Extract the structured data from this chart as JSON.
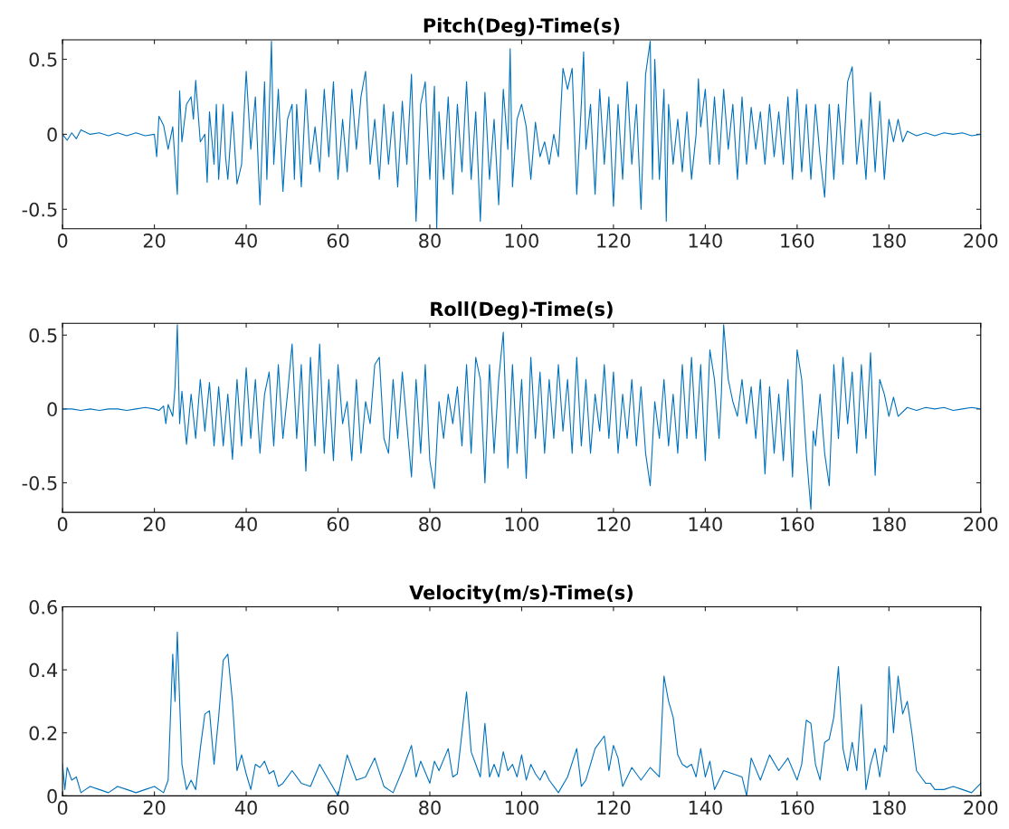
{
  "chart_data": [
    {
      "type": "line",
      "title": "Pitch(Deg)-Time(s)",
      "xlim": [
        0,
        200
      ],
      "xticks": [
        0,
        20,
        40,
        60,
        80,
        100,
        120,
        140,
        160,
        180,
        200
      ],
      "ylim": [
        -0.63,
        0.63
      ],
      "yticks": [
        -0.5,
        0,
        0.5
      ],
      "grid": false,
      "legend": false,
      "series": [
        {
          "color": "#0072bd",
          "x": [
            0,
            1,
            2,
            3,
            4,
            6,
            8,
            10,
            12,
            14,
            16,
            18,
            20,
            20.5,
            21,
            22,
            23,
            24,
            25,
            25.5,
            26,
            27,
            28,
            28.5,
            29,
            30,
            31,
            31.5,
            32,
            33,
            33.5,
            34,
            35,
            35.5,
            36,
            37,
            38,
            39,
            40,
            41,
            42,
            43,
            44,
            44.5,
            45,
            45.5,
            46,
            47,
            48,
            49,
            50,
            50.5,
            51,
            52,
            53,
            54,
            55,
            56,
            57,
            58,
            59,
            60,
            61,
            62,
            63,
            64,
            65,
            66,
            67,
            68,
            69,
            70,
            71,
            72,
            73,
            74,
            75,
            76,
            77,
            78,
            79,
            80,
            81,
            81.5,
            82,
            83,
            84,
            85,
            86,
            87,
            88,
            89,
            90,
            91,
            92,
            93,
            94,
            95,
            96,
            97,
            97.5,
            98,
            99,
            100,
            101,
            102,
            103,
            104,
            105,
            106,
            107,
            108,
            109,
            110,
            111,
            112,
            113,
            113.5,
            114,
            115,
            116,
            117,
            118,
            119,
            120,
            121,
            122,
            123,
            124,
            125,
            126,
            127,
            128,
            128.5,
            129,
            130,
            131,
            131.5,
            132,
            133,
            134,
            135,
            136,
            137,
            138,
            138.5,
            139,
            140,
            141,
            142,
            143,
            144,
            145,
            146,
            147,
            148,
            149,
            150,
            151,
            152,
            153,
            154,
            155,
            156,
            157,
            158,
            159,
            160,
            161,
            162,
            163,
            164,
            165,
            166,
            167,
            168,
            169,
            170,
            171,
            172,
            173,
            174,
            175,
            176,
            177,
            178,
            179,
            180,
            181,
            182,
            183,
            184,
            186,
            188,
            190,
            192,
            194,
            196,
            198,
            200
          ],
          "values": [
            0,
            -0.04,
            0.01,
            -0.03,
            0.03,
            0,
            0.01,
            -0.01,
            0.01,
            -0.01,
            0.01,
            -0.01,
            0,
            -0.15,
            0.12,
            0.06,
            -0.1,
            0.05,
            -0.4,
            0.29,
            -0.05,
            0.2,
            0.25,
            0.1,
            0.36,
            -0.05,
            0,
            -0.32,
            0.15,
            -0.2,
            0.2,
            -0.3,
            0.2,
            -0.15,
            -0.3,
            0.15,
            -0.33,
            -0.2,
            0.42,
            -0.1,
            0.25,
            -0.47,
            0.35,
            -0.3,
            0.15,
            0.62,
            -0.2,
            0.3,
            -0.38,
            0.1,
            0.2,
            -0.3,
            0.2,
            -0.35,
            0.3,
            -0.2,
            0.05,
            -0.25,
            0.3,
            -0.15,
            0.35,
            -0.3,
            0.1,
            -0.25,
            0.3,
            -0.1,
            0.25,
            0.42,
            -0.2,
            0.1,
            -0.3,
            0.2,
            -0.2,
            0.15,
            -0.35,
            0.22,
            -0.2,
            0.4,
            -0.58,
            0.2,
            0.35,
            -0.3,
            0.32,
            -0.63,
            0.15,
            -0.3,
            0.25,
            -0.4,
            0.2,
            -0.25,
            0.35,
            -0.3,
            0.15,
            -0.58,
            0.28,
            -0.3,
            0.1,
            -0.47,
            0.3,
            -0.1,
            0.57,
            -0.35,
            0.1,
            0.2,
            0.05,
            -0.3,
            0.08,
            -0.15,
            -0.05,
            -0.2,
            0,
            -0.15,
            0.44,
            0.3,
            0.44,
            -0.4,
            0.2,
            0.55,
            -0.1,
            0.2,
            -0.4,
            0.3,
            -0.2,
            0.25,
            -0.48,
            0.2,
            -0.3,
            0.35,
            -0.2,
            0.2,
            -0.5,
            0.4,
            0.62,
            -0.3,
            0.5,
            -0.3,
            0.3,
            -0.58,
            0.2,
            -0.2,
            0.1,
            -0.25,
            0.15,
            -0.3,
            0,
            0.37,
            0.05,
            0.3,
            -0.2,
            0.25,
            -0.2,
            0.3,
            -0.1,
            0.2,
            -0.3,
            0.25,
            -0.2,
            0.18,
            -0.1,
            0.15,
            -0.2,
            0.2,
            -0.15,
            0.15,
            -0.2,
            0.25,
            -0.3,
            0.3,
            -0.25,
            0.2,
            -0.3,
            0.2,
            -0.15,
            -0.42,
            0.2,
            -0.3,
            0.2,
            -0.2,
            0.35,
            0.45,
            -0.2,
            0.1,
            -0.3,
            0.28,
            -0.25,
            0.22,
            -0.3,
            0.1,
            -0.05,
            0.1,
            -0.05,
            0.02,
            -0.01,
            0.01,
            -0.01,
            0.01,
            0,
            0.01,
            -0.01,
            0
          ]
        }
      ]
    },
    {
      "type": "line",
      "title": "Roll(Deg)-Time(s)",
      "xlim": [
        0,
        200
      ],
      "xticks": [
        0,
        20,
        40,
        60,
        80,
        100,
        120,
        140,
        160,
        180,
        200
      ],
      "ylim": [
        -0.7,
        0.58
      ],
      "yticks": [
        -0.5,
        0,
        0.5
      ],
      "grid": false,
      "legend": false,
      "series": [
        {
          "color": "#0072bd",
          "x": [
            0,
            2,
            4,
            6,
            8,
            10,
            12,
            14,
            16,
            18,
            20,
            21,
            22,
            22.5,
            23,
            24,
            24.5,
            25,
            25.5,
            26,
            27,
            28,
            29,
            30,
            31,
            32,
            33,
            34,
            35,
            36,
            37,
            38,
            39,
            40,
            41,
            42,
            43,
            44,
            45,
            46,
            47,
            48,
            49,
            50,
            51,
            52,
            53,
            54,
            55,
            56,
            57,
            58,
            59,
            60,
            61,
            62,
            63,
            64,
            65,
            66,
            67,
            68,
            69,
            70,
            71,
            72,
            73,
            74,
            75,
            76,
            77,
            78,
            79,
            80,
            81,
            82,
            83,
            84,
            85,
            86,
            87,
            88,
            89,
            90,
            91,
            92,
            93,
            94,
            95,
            96,
            97,
            98,
            99,
            100,
            101,
            102,
            103,
            104,
            105,
            106,
            107,
            108,
            109,
            110,
            111,
            112,
            113,
            114,
            115,
            116,
            117,
            118,
            119,
            120,
            121,
            122,
            123,
            124,
            125,
            126,
            127,
            128,
            129,
            130,
            131,
            132,
            133,
            134,
            135,
            136,
            137,
            138,
            139,
            140,
            141,
            142,
            143,
            143.5,
            144,
            145,
            146,
            147,
            148,
            149,
            150,
            151,
            152,
            153,
            154,
            155,
            156,
            157,
            158,
            159,
            160,
            161,
            162,
            163,
            163.5,
            164,
            165,
            166,
            167,
            168,
            169,
            170,
            171,
            172,
            173,
            174,
            175,
            176,
            177,
            178,
            179,
            180,
            181,
            182,
            184,
            186,
            188,
            190,
            192,
            194,
            196,
            198,
            200
          ],
          "values": [
            0,
            0,
            -0.01,
            0,
            -0.01,
            0,
            0,
            -0.01,
            0,
            0.01,
            0,
            -0.01,
            0.02,
            -0.1,
            0.03,
            -0.05,
            0.15,
            0.57,
            -0.1,
            0.12,
            -0.24,
            0.1,
            -0.2,
            0.2,
            -0.15,
            0.18,
            -0.25,
            0.15,
            -0.25,
            0.1,
            -0.34,
            0.2,
            -0.25,
            0.28,
            -0.2,
            0.2,
            -0.3,
            0.1,
            0.25,
            -0.25,
            0.3,
            -0.2,
            0.1,
            0.44,
            -0.2,
            0.3,
            -0.42,
            0.35,
            -0.25,
            0.44,
            -0.3,
            0.2,
            -0.35,
            0.3,
            -0.1,
            0.05,
            -0.35,
            0.2,
            -0.3,
            0.05,
            -0.1,
            0.3,
            0.35,
            -0.2,
            -0.3,
            0.2,
            -0.2,
            0.25,
            -0.1,
            -0.46,
            0.2,
            -0.3,
            0.3,
            -0.35,
            -0.54,
            0.05,
            -0.2,
            0.1,
            -0.1,
            0.15,
            -0.25,
            0.3,
            -0.3,
            0.35,
            0.2,
            -0.5,
            0.3,
            -0.3,
            0.2,
            0.52,
            -0.4,
            0.3,
            -0.3,
            0.2,
            -0.47,
            0.35,
            -0.2,
            0.25,
            -0.3,
            0.2,
            -0.2,
            0.3,
            -0.15,
            0.2,
            -0.3,
            0.35,
            -0.25,
            0.2,
            -0.3,
            0.1,
            -0.15,
            0.3,
            -0.2,
            0.25,
            -0.3,
            0.1,
            -0.2,
            0.2,
            -0.25,
            0.15,
            -0.3,
            -0.52,
            0.05,
            -0.2,
            0.2,
            -0.25,
            0.1,
            -0.3,
            0.3,
            -0.2,
            0.35,
            -0.2,
            0.3,
            -0.35,
            0.4,
            0.2,
            -0.2,
            0.1,
            0.57,
            0.2,
            0.05,
            -0.05,
            0.2,
            -0.1,
            0.15,
            -0.2,
            0.2,
            -0.44,
            0.15,
            -0.3,
            0.1,
            -0.35,
            0.2,
            -0.46,
            0.4,
            0.2,
            -0.3,
            -0.68,
            -0.15,
            -0.25,
            0.1,
            -0.3,
            -0.52,
            0.3,
            -0.2,
            0.35,
            -0.1,
            0.25,
            -0.3,
            0.3,
            -0.2,
            0.38,
            -0.45,
            0.2,
            0.1,
            -0.05,
            0.08,
            -0.05,
            0.01,
            -0.01,
            0.01,
            0,
            0.01,
            -0.01,
            0,
            0.01,
            0
          ]
        }
      ]
    },
    {
      "type": "line",
      "title": "Velocity(m/s)-Time(s)",
      "xlim": [
        0,
        200
      ],
      "xticks": [
        0,
        20,
        40,
        60,
        80,
        100,
        120,
        140,
        160,
        180,
        200
      ],
      "ylim": [
        0,
        0.6
      ],
      "yticks": [
        0,
        0.2,
        0.4,
        0.6
      ],
      "grid": false,
      "legend": false,
      "series": [
        {
          "color": "#0072bd",
          "x": [
            0,
            0.5,
            1,
            2,
            3,
            4,
            5,
            6,
            8,
            10,
            12,
            14,
            16,
            18,
            20,
            22,
            23,
            24,
            24.5,
            25,
            25.5,
            26,
            27,
            28,
            29,
            30,
            31,
            32,
            33,
            34,
            35,
            36,
            37,
            38,
            39,
            40,
            41,
            42,
            43,
            44,
            45,
            46,
            47,
            48,
            50,
            52,
            54,
            56,
            58,
            60,
            62,
            64,
            66,
            68,
            70,
            72,
            74,
            76,
            77,
            78,
            80,
            81,
            82,
            84,
            85,
            86,
            88,
            89,
            90,
            91,
            92,
            93,
            94,
            95,
            96,
            97,
            98,
            99,
            100,
            101,
            102,
            103,
            104,
            105,
            106,
            108,
            110,
            112,
            113,
            114,
            116,
            118,
            119,
            120,
            121,
            122,
            124,
            126,
            128,
            130,
            131,
            132,
            133,
            134,
            135,
            136,
            137,
            138,
            139,
            140,
            141,
            142,
            144,
            146,
            148,
            149,
            150,
            152,
            154,
            156,
            158,
            160,
            161,
            162,
            163,
            164,
            165,
            166,
            167,
            168,
            169,
            170,
            171,
            172,
            173,
            174,
            175,
            176,
            177,
            178,
            179,
            179.5,
            180,
            181,
            182,
            183,
            184,
            185,
            186,
            187,
            188,
            189,
            190,
            192,
            194,
            196,
            198,
            200
          ],
          "values": [
            0.1,
            0.02,
            0.09,
            0.05,
            0.06,
            0.01,
            0.02,
            0.03,
            0.02,
            0.01,
            0.03,
            0.02,
            0.01,
            0.02,
            0.03,
            0.01,
            0.05,
            0.45,
            0.3,
            0.52,
            0.3,
            0.1,
            0.02,
            0.05,
            0.02,
            0.15,
            0.26,
            0.27,
            0.1,
            0.25,
            0.43,
            0.45,
            0.3,
            0.08,
            0.13,
            0.07,
            0.02,
            0.1,
            0.09,
            0.11,
            0.07,
            0.08,
            0.03,
            0.04,
            0.08,
            0.04,
            0.03,
            0.1,
            0.05,
            0.0,
            0.13,
            0.05,
            0.06,
            0.12,
            0.03,
            0.01,
            0.08,
            0.16,
            0.06,
            0.11,
            0.04,
            0.11,
            0.08,
            0.15,
            0.06,
            0.07,
            0.33,
            0.14,
            0.1,
            0.06,
            0.23,
            0.06,
            0.1,
            0.06,
            0.14,
            0.08,
            0.1,
            0.06,
            0.13,
            0.05,
            0.1,
            0.07,
            0.05,
            0.08,
            0.05,
            0.01,
            0.06,
            0.15,
            0.03,
            0.05,
            0.15,
            0.19,
            0.08,
            0.16,
            0.12,
            0.03,
            0.09,
            0.05,
            0.09,
            0.06,
            0.38,
            0.3,
            0.25,
            0.13,
            0.1,
            0.09,
            0.1,
            0.06,
            0.15,
            0.06,
            0.11,
            0.02,
            0.08,
            0.07,
            0.06,
            0.0,
            0.12,
            0.05,
            0.13,
            0.08,
            0.12,
            0.05,
            0.1,
            0.24,
            0.23,
            0.1,
            0.05,
            0.17,
            0.18,
            0.25,
            0.41,
            0.15,
            0.08,
            0.17,
            0.08,
            0.29,
            0.02,
            0.1,
            0.15,
            0.06,
            0.16,
            0.14,
            0.41,
            0.2,
            0.38,
            0.26,
            0.3,
            0.2,
            0.08,
            0.06,
            0.04,
            0.04,
            0.02,
            0.02,
            0.03,
            0.02,
            0.01,
            0.04
          ]
        }
      ]
    }
  ]
}
